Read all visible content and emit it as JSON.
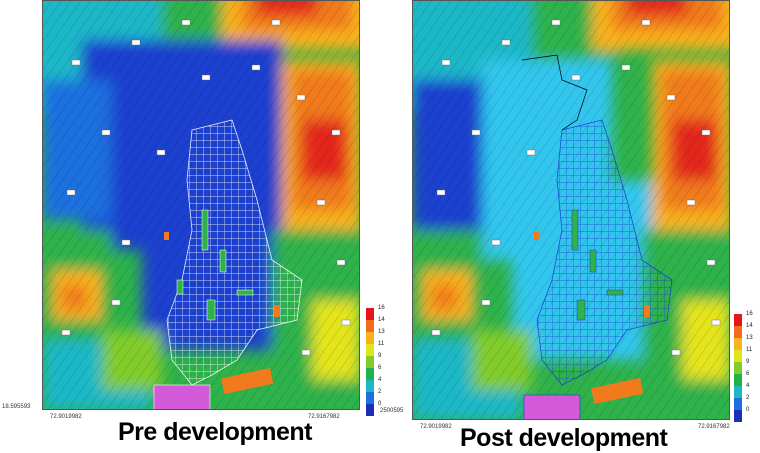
{
  "panels": [
    {
      "id": "pre",
      "caption": "Pre development",
      "coord_left": "18.595593",
      "coord_bottom_left": "72.9019982",
      "coord_bottom_right": "72.9167982"
    },
    {
      "id": "post",
      "caption": "Post development",
      "coord_left": "2500595",
      "coord_bottom_left": "72.9019982",
      "coord_bottom_right": "72.9167982"
    }
  ],
  "legend": {
    "values": [
      "16",
      "14",
      "13",
      "11",
      "9",
      "6",
      "4",
      "2",
      "0"
    ],
    "colors": [
      "#e8141c",
      "#f36b1d",
      "#f9b21e",
      "#e4e41a",
      "#82cc2a",
      "#1fb24a",
      "#1cb8c8",
      "#1f6fe0",
      "#1a2fb8"
    ]
  },
  "colors": {
    "deep_blue": "#1b3fcf",
    "light_blue": "#33c6ee",
    "green": "#2fb24b",
    "yellow": "#e7e31a",
    "orange": "#f07a1c",
    "red": "#e3261c",
    "magenta": "#d35ad8"
  }
}
